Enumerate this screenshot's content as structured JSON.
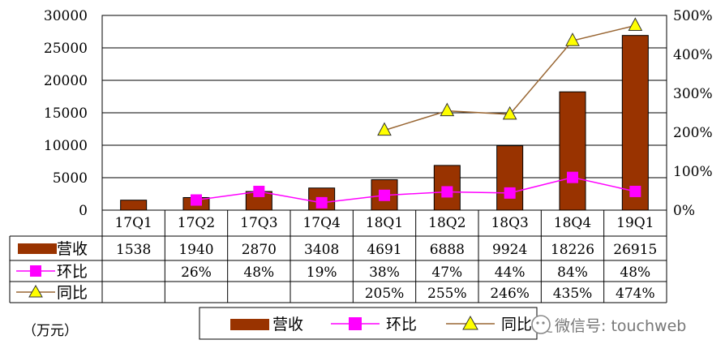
{
  "chart_data": {
    "type": "bar",
    "categories": [
      "17Q1",
      "17Q2",
      "17Q3",
      "17Q4",
      "18Q1",
      "18Q2",
      "18Q3",
      "18Q4",
      "19Q1"
    ],
    "series": [
      {
        "name": "营收",
        "kind": "bar",
        "axis": "left",
        "color": "#993300",
        "values": [
          1538,
          1940,
          2870,
          3408,
          4691,
          6888,
          9924,
          18226,
          26915
        ],
        "labels": [
          "1538",
          "1940",
          "2870",
          "3408",
          "4691",
          "6888",
          "9924",
          "18226",
          "26915"
        ]
      },
      {
        "name": "环比",
        "kind": "line",
        "marker": "square",
        "axis": "right",
        "color": "#ff00ff",
        "values": [
          null,
          26,
          48,
          19,
          38,
          47,
          44,
          84,
          48
        ],
        "labels": [
          "",
          "26%",
          "48%",
          "19%",
          "38%",
          "47%",
          "44%",
          "84%",
          "48%"
        ]
      },
      {
        "name": "同比",
        "kind": "line",
        "marker": "triangle",
        "axis": "right",
        "color": "#996633",
        "marker_color": "#ffff00",
        "values": [
          null,
          null,
          null,
          null,
          205,
          255,
          246,
          435,
          474
        ],
        "labels": [
          "",
          "",
          "",
          "",
          "205%",
          "255%",
          "246%",
          "435%",
          "474%"
        ]
      }
    ],
    "y_left": {
      "min": 0,
      "max": 30000,
      "ticks": [
        "0",
        "5000",
        "10000",
        "15000",
        "20000",
        "25000",
        "30000"
      ]
    },
    "y_right": {
      "min": 0,
      "max": 500,
      "ticks": [
        "0%",
        "100%",
        "200%",
        "300%",
        "400%",
        "500%"
      ]
    },
    "unit_label": "（万元）",
    "legend": [
      "营收",
      "环比",
      "同比"
    ],
    "legend_position": "bottom",
    "grid": true
  },
  "watermark": {
    "text": "微信号: touchweb",
    "icon": "wechat-icon"
  }
}
